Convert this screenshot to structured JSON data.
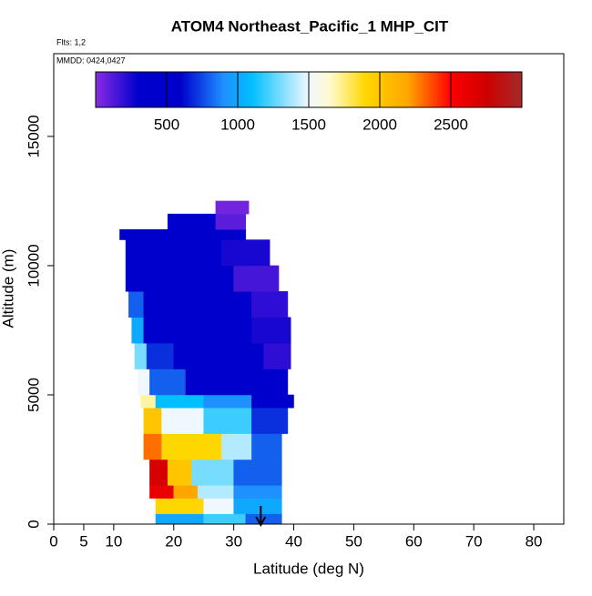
{
  "chart_data": {
    "type": "curtain",
    "title": "ATOM4 Northeast_Pacific_1 MHP_CIT",
    "subtitle": "Flts: 1,2",
    "annotation": "MMDD: 0424,0427",
    "x_label": "Latitude (deg N)",
    "y_label": "Altitude (m)",
    "xlim": [
      0,
      85
    ],
    "xticks": [
      0,
      5,
      10,
      20,
      30,
      40,
      50,
      60,
      70,
      80
    ],
    "ylim": [
      0,
      18200
    ],
    "yticks": [
      0,
      5000,
      10000,
      15000
    ],
    "colorbar": {
      "lim": [
        0,
        3000
      ],
      "ticks": [
        500,
        1000,
        1500,
        2000,
        2500
      ],
      "colors": [
        [
          0,
          "#8a2be2"
        ],
        [
          300,
          "#0000cd"
        ],
        [
          600,
          "#0000cd"
        ],
        [
          900,
          "#1e90ff"
        ],
        [
          1100,
          "#00bfff"
        ],
        [
          1500,
          "#f0f8ff"
        ],
        [
          1650,
          "#fffacd"
        ],
        [
          1900,
          "#ffd700"
        ],
        [
          2200,
          "#ffa500"
        ],
        [
          2500,
          "#ff0000"
        ],
        [
          2750,
          "#cd0000"
        ],
        [
          3000,
          "#a52a2a"
        ]
      ]
    },
    "rows": [
      {
        "alt": [
          0,
          400
        ],
        "lat": [
          17,
          25,
          32,
          38
        ],
        "values": [
          1000,
          1200,
          800
        ]
      },
      {
        "alt": [
          400,
          1000
        ],
        "lat": [
          17,
          25,
          30,
          38
        ],
        "values": [
          1900,
          1500,
          1000
        ]
      },
      {
        "alt": [
          1000,
          1500
        ],
        "lat": [
          16,
          20,
          24,
          30,
          38
        ],
        "values": [
          2600,
          2200,
          1400,
          900
        ]
      },
      {
        "alt": [
          1500,
          2500
        ],
        "lat": [
          16,
          19,
          23,
          30,
          38
        ],
        "values": [
          2700,
          2000,
          1300,
          800
        ]
      },
      {
        "alt": [
          2500,
          3500
        ],
        "lat": [
          15,
          18,
          28,
          33,
          38
        ],
        "values": [
          2300,
          1900,
          1400,
          800
        ]
      },
      {
        "alt": [
          3500,
          4500
        ],
        "lat": [
          15,
          18,
          25,
          33,
          39
        ],
        "values": [
          2000,
          1500,
          1200,
          700
        ]
      },
      {
        "alt": [
          4500,
          5000
        ],
        "lat": [
          14.5,
          17,
          25,
          33,
          40
        ],
        "values": [
          1700,
          1100,
          900,
          600
        ]
      },
      {
        "alt": [
          5000,
          6000
        ],
        "lat": [
          14,
          16,
          22,
          39
        ],
        "values": [
          1500,
          800,
          450
        ]
      },
      {
        "alt": [
          6000,
          7000
        ],
        "lat": [
          13.5,
          15.5,
          20,
          35,
          39.5
        ],
        "values": [
          1300,
          700,
          400,
          200
        ]
      },
      {
        "alt": [
          7000,
          8000
        ],
        "lat": [
          13,
          15,
          20,
          33,
          39.5
        ],
        "values": [
          1000,
          600,
          400,
          250
        ]
      },
      {
        "alt": [
          8000,
          9000
        ],
        "lat": [
          12.5,
          15,
          22,
          33,
          39
        ],
        "values": [
          800,
          500,
          350,
          200
        ]
      },
      {
        "alt": [
          9000,
          10000
        ],
        "lat": [
          12,
          20,
          30,
          37.5
        ],
        "values": [
          450,
          300,
          150
        ]
      },
      {
        "alt": [
          10000,
          11000
        ],
        "lat": [
          12,
          18,
          28,
          36
        ],
        "values": [
          450,
          350,
          250
        ]
      },
      {
        "alt": [
          11000,
          11400
        ],
        "lat": [
          11,
          25,
          32
        ],
        "values": [
          400,
          300
        ]
      },
      {
        "alt": [
          11400,
          12000
        ],
        "lat": [
          19,
          27,
          32
        ],
        "values": [
          350,
          100
        ]
      },
      {
        "alt": [
          12000,
          12500
        ],
        "lat": [
          27,
          32.5
        ],
        "values": [
          50
        ]
      }
    ]
  }
}
